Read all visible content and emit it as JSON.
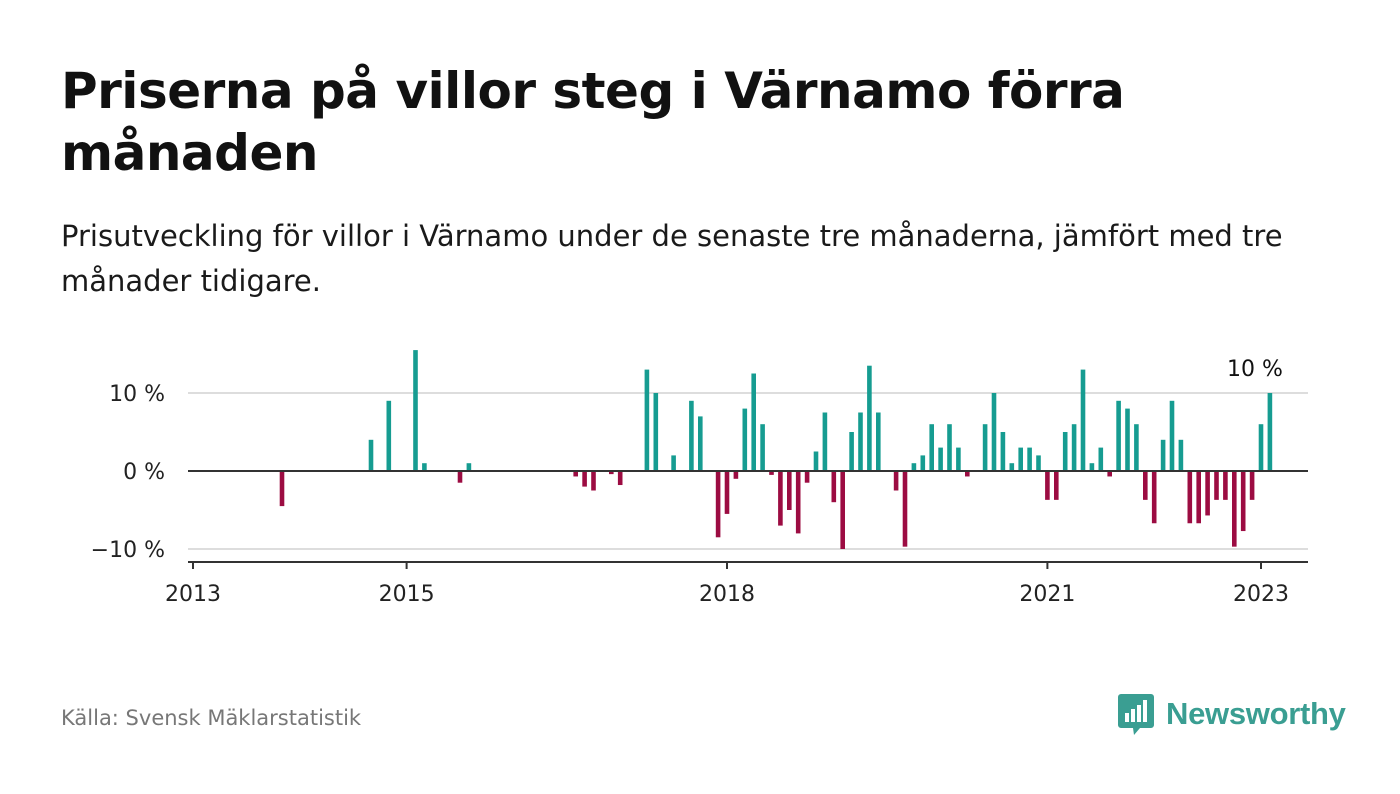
{
  "title": "Priserna på villor steg i Värnamo förra månaden",
  "subtitle": "Prisutveckling för villor i Värnamo under de senaste tre månaderna, jämfört med tre månader tidigare.",
  "source": "Källa: Svensk Mäklarstatistik",
  "brand": {
    "name": "Newsworthy",
    "icon": "newsworthy-logo-icon",
    "color": "#3a9e92"
  },
  "colors": {
    "positive": "#169c91",
    "negative": "#9c0c42",
    "grid": "#dddddd",
    "zero_line": "#333333",
    "axis": "#333333"
  },
  "chart_data": {
    "type": "bar",
    "x_unit": "month",
    "y_unit": "%",
    "ylim": [
      -11,
      16
    ],
    "grid": true,
    "y_ticks": [
      {
        "value": 10,
        "label": "10 %"
      },
      {
        "value": 0,
        "label": "0 %"
      },
      {
        "value": -10,
        "label": "−10 %"
      }
    ],
    "x_ticks": [
      {
        "date": "2013-01",
        "label": "2013"
      },
      {
        "date": "2015-01",
        "label": "2015"
      },
      {
        "date": "2018-01",
        "label": "2018"
      },
      {
        "date": "2021-01",
        "label": "2021"
      },
      {
        "date": "2023-01",
        "label": "2023"
      }
    ],
    "annotations": [
      {
        "date": "2023-01",
        "label": "10 %"
      }
    ],
    "points": [
      {
        "date": "2013-11",
        "value": -4.5
      },
      {
        "date": "2014-09",
        "value": 4
      },
      {
        "date": "2014-11",
        "value": 9
      },
      {
        "date": "2015-02",
        "value": 15.5
      },
      {
        "date": "2015-03",
        "value": 1
      },
      {
        "date": "2015-07",
        "value": -1.5
      },
      {
        "date": "2015-08",
        "value": 1
      },
      {
        "date": "2016-08",
        "value": -0.7
      },
      {
        "date": "2016-09",
        "value": -2
      },
      {
        "date": "2016-10",
        "value": -2.5
      },
      {
        "date": "2016-12",
        "value": -0.4
      },
      {
        "date": "2017-01",
        "value": -1.8
      },
      {
        "date": "2017-04",
        "value": 13
      },
      {
        "date": "2017-05",
        "value": 10
      },
      {
        "date": "2017-07",
        "value": 2
      },
      {
        "date": "2017-09",
        "value": 9
      },
      {
        "date": "2017-10",
        "value": 7
      },
      {
        "date": "2017-12",
        "value": -8.5
      },
      {
        "date": "2018-01",
        "value": -5.5
      },
      {
        "date": "2018-02",
        "value": -1
      },
      {
        "date": "2018-03",
        "value": 8
      },
      {
        "date": "2018-04",
        "value": 12.5
      },
      {
        "date": "2018-05",
        "value": 6
      },
      {
        "date": "2018-06",
        "value": -0.5
      },
      {
        "date": "2018-07",
        "value": -7
      },
      {
        "date": "2018-08",
        "value": -5
      },
      {
        "date": "2018-09",
        "value": -8
      },
      {
        "date": "2018-10",
        "value": -1.5
      },
      {
        "date": "2018-11",
        "value": 2.5
      },
      {
        "date": "2018-12",
        "value": 7.5
      },
      {
        "date": "2019-01",
        "value": -4
      },
      {
        "date": "2019-02",
        "value": -10
      },
      {
        "date": "2019-03",
        "value": 5
      },
      {
        "date": "2019-04",
        "value": 7.5
      },
      {
        "date": "2019-05",
        "value": 13.5
      },
      {
        "date": "2019-06",
        "value": 7.5
      },
      {
        "date": "2019-08",
        "value": -2.5
      },
      {
        "date": "2019-09",
        "value": -9.7
      },
      {
        "date": "2019-10",
        "value": 1
      },
      {
        "date": "2019-11",
        "value": 2
      },
      {
        "date": "2019-12",
        "value": 6
      },
      {
        "date": "2020-01",
        "value": 3
      },
      {
        "date": "2020-02",
        "value": 6
      },
      {
        "date": "2020-03",
        "value": 3
      },
      {
        "date": "2020-04",
        "value": -0.7
      },
      {
        "date": "2020-06",
        "value": 6
      },
      {
        "date": "2020-07",
        "value": 10
      },
      {
        "date": "2020-08",
        "value": 5
      },
      {
        "date": "2020-09",
        "value": 1
      },
      {
        "date": "2020-10",
        "value": 3
      },
      {
        "date": "2020-11",
        "value": 3
      },
      {
        "date": "2020-12",
        "value": 2
      },
      {
        "date": "2021-01",
        "value": -3.7
      },
      {
        "date": "2021-02",
        "value": -3.7
      },
      {
        "date": "2021-03",
        "value": 5
      },
      {
        "date": "2021-04",
        "value": 6
      },
      {
        "date": "2021-05",
        "value": 13
      },
      {
        "date": "2021-06",
        "value": 1
      },
      {
        "date": "2021-07",
        "value": 3
      },
      {
        "date": "2021-08",
        "value": -0.7
      },
      {
        "date": "2021-09",
        "value": 9
      },
      {
        "date": "2021-10",
        "value": 8
      },
      {
        "date": "2021-11",
        "value": 6
      },
      {
        "date": "2021-12",
        "value": -3.7
      },
      {
        "date": "2022-01",
        "value": -6.7
      },
      {
        "date": "2022-02",
        "value": 4
      },
      {
        "date": "2022-03",
        "value": 9
      },
      {
        "date": "2022-04",
        "value": 4
      },
      {
        "date": "2022-05",
        "value": -6.7
      },
      {
        "date": "2022-06",
        "value": -6.7
      },
      {
        "date": "2022-07",
        "value": -5.7
      },
      {
        "date": "2022-08",
        "value": -3.7
      },
      {
        "date": "2022-09",
        "value": -3.7
      },
      {
        "date": "2022-10",
        "value": -9.7
      },
      {
        "date": "2022-11",
        "value": -7.7
      },
      {
        "date": "2022-12",
        "value": -3.7
      },
      {
        "date": "2023-01",
        "value": 6
      },
      {
        "date": "2023-02",
        "value": 10
      }
    ]
  }
}
